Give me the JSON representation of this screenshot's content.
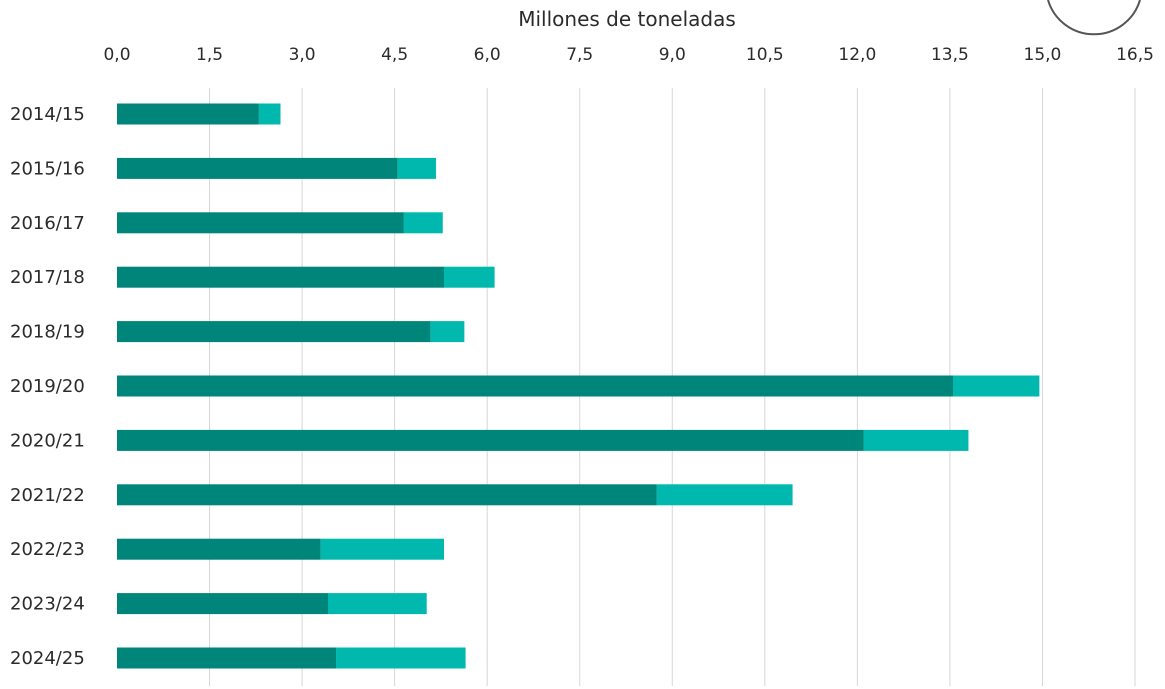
{
  "chart_data": {
    "type": "bar",
    "orientation": "horizontal",
    "stacked": true,
    "xlabel": "Millones de toneladas",
    "xlim": [
      0,
      16.5
    ],
    "xticks": [
      "0,0",
      "1,5",
      "3,0",
      "4,5",
      "6,0",
      "7,5",
      "9,0",
      "10,5",
      "12,0",
      "13,5",
      "15,0",
      "16,5"
    ],
    "categories": [
      "2014/15",
      "2015/16",
      "2016/17",
      "2017/18",
      "2018/19",
      "2019/20",
      "2020/21",
      "2021/22",
      "2022/23",
      "2023/24",
      "2024/25"
    ],
    "series": [
      {
        "color": "#00857a",
        "values": [
          2.3,
          4.55,
          4.65,
          5.3,
          5.08,
          13.55,
          12.1,
          8.75,
          3.3,
          3.42,
          3.55
        ]
      },
      {
        "color": "#00b8ad",
        "values": [
          0.35,
          0.62,
          0.63,
          0.82,
          0.55,
          1.4,
          1.7,
          2.2,
          2.0,
          1.6,
          2.1
        ]
      }
    ],
    "grid": true,
    "legend": "none"
  }
}
